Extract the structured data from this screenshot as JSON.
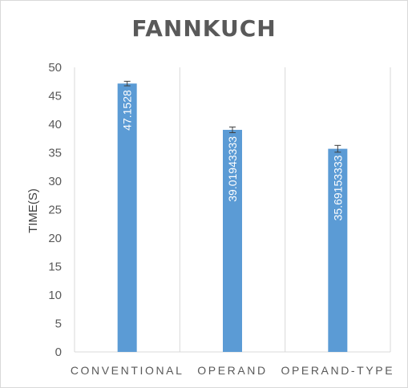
{
  "colors": {
    "bar": "#5b9bd5",
    "gridline": "#d9d9d9",
    "axis_text": "#595959",
    "error_bar": "#404040"
  },
  "chart_data": {
    "type": "bar",
    "title": "FANNKUCH",
    "xlabel": "",
    "ylabel": "TIME(S)",
    "ylim": [
      0,
      50
    ],
    "ytick_step": 5,
    "yticks": [
      "0",
      "5",
      "10",
      "15",
      "20",
      "25",
      "30",
      "35",
      "40",
      "45",
      "50"
    ],
    "categories": [
      "CONVENTIONAL",
      "OPERAND",
      "OPERAND-TYPE"
    ],
    "values": [
      47.1528,
      39.01943333,
      35.69153333
    ],
    "data_labels": [
      "47.1528",
      "39.01943333",
      "35.69153333"
    ],
    "error": [
      0.4,
      0.5,
      0.6
    ],
    "grid": "vertical-separators",
    "legend": "none"
  }
}
